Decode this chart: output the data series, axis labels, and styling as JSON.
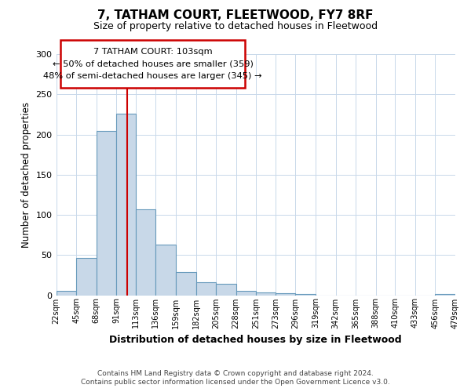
{
  "title": "7, TATHAM COURT, FLEETWOOD, FY7 8RF",
  "subtitle": "Size of property relative to detached houses in Fleetwood",
  "xlabel": "Distribution of detached houses by size in Fleetwood",
  "ylabel": "Number of detached properties",
  "bin_edges": [
    22,
    45,
    68,
    91,
    113,
    136,
    159,
    182,
    205,
    228,
    251,
    273,
    296,
    319,
    342,
    365,
    388,
    410,
    433,
    456,
    479
  ],
  "bar_heights": [
    5,
    46,
    204,
    226,
    107,
    63,
    29,
    16,
    14,
    5,
    3,
    2,
    1,
    0,
    0,
    0,
    0,
    0,
    0,
    1
  ],
  "bar_color": "#c8d8e8",
  "bar_edge_color": "#6699bb",
  "vline_x": 103,
  "vline_color": "#cc0000",
  "ylim": [
    0,
    300
  ],
  "yticks": [
    0,
    50,
    100,
    150,
    200,
    250,
    300
  ],
  "tick_labels": [
    "22sqm",
    "45sqm",
    "68sqm",
    "91sqm",
    "113sqm",
    "136sqm",
    "159sqm",
    "182sqm",
    "205sqm",
    "228sqm",
    "251sqm",
    "273sqm",
    "296sqm",
    "319sqm",
    "342sqm",
    "365sqm",
    "388sqm",
    "410sqm",
    "433sqm",
    "456sqm",
    "479sqm"
  ],
  "ann_line1": "7 TATHAM COURT: 103sqm",
  "ann_line2": "← 50% of detached houses are smaller (359)",
  "ann_line3": "48% of semi-detached houses are larger (345) →",
  "footer_line1": "Contains HM Land Registry data © Crown copyright and database right 2024.",
  "footer_line2": "Contains public sector information licensed under the Open Government Licence v3.0.",
  "background_color": "#ffffff",
  "grid_color": "#c8d8ea"
}
